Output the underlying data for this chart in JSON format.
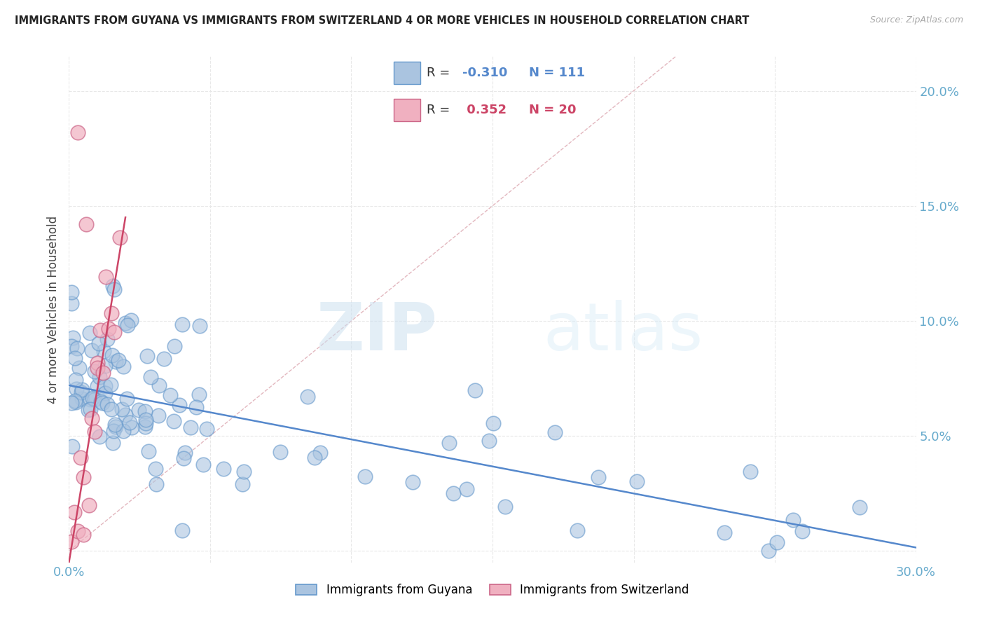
{
  "title": "IMMIGRANTS FROM GUYANA VS IMMIGRANTS FROM SWITZERLAND 4 OR MORE VEHICLES IN HOUSEHOLD CORRELATION CHART",
  "source": "Source: ZipAtlas.com",
  "ylabel": "4 or more Vehicles in Household",
  "xlim": [
    0.0,
    0.3
  ],
  "ylim": [
    -0.005,
    0.215
  ],
  "watermark_zip": "ZIP",
  "watermark_atlas": "atlas",
  "guyana_color": "#aac4e0",
  "guyana_edge": "#6699cc",
  "switzerland_color": "#f0b0c0",
  "switzerland_edge": "#cc6688",
  "guyana_line_color": "#5588cc",
  "switzerland_line_color": "#cc4466",
  "diag_color": "#e0b0b8",
  "background_color": "#ffffff",
  "grid_color": "#e8e8e8",
  "tick_color": "#66aacc",
  "title_color": "#222222",
  "source_color": "#aaaaaa",
  "ylabel_color": "#444444",
  "legend_r1_color": "#5588cc",
  "legend_r2_color": "#cc4466",
  "guyana_intercept": 0.072,
  "guyana_slope": -0.235,
  "swiss_intercept": -0.005,
  "swiss_slope": 7.5
}
